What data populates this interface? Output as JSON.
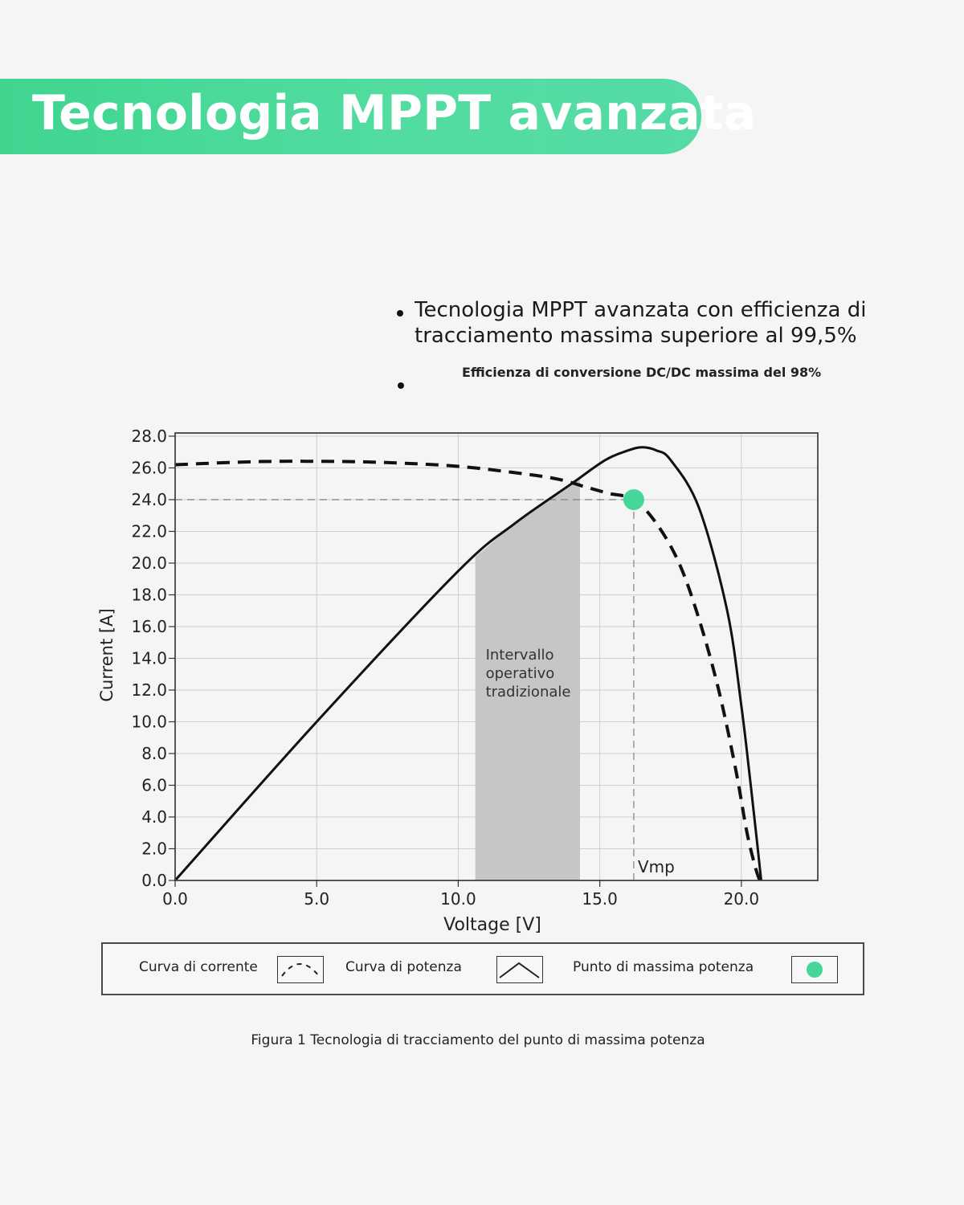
{
  "header": {
    "title": "Tecnologia MPPT avanzata"
  },
  "bullets": [
    "Tecnologia MPPT avanzata con efficienza di tracciamento massima superiore al 99,5%",
    "Efficienza di conversione DC/DC massima del 98%"
  ],
  "colors": {
    "accent": "#47d69a",
    "band": "#c6c6c6",
    "line": "#111111"
  },
  "legend": {
    "current_label": "Curva di corrente",
    "power_label": "Curva di potenza",
    "mpp_label": "Punto di massima potenza"
  },
  "caption": "Figura 1 Tecnologia di tracciamento del punto di massima potenza",
  "chart_data": {
    "type": "line",
    "xlabel": "Voltage [V]",
    "ylabel": "Current [A]",
    "xlim": [
      0,
      22.7
    ],
    "ylim": [
      0,
      28.2
    ],
    "grid": true,
    "xticks": [
      "0.0",
      "5.0",
      "10.0",
      "15.0",
      "20.0"
    ],
    "yticks": [
      "0.0",
      "2.0",
      "4.0",
      "6.0",
      "8.0",
      "10.0",
      "12.0",
      "14.0",
      "16.0",
      "18.0",
      "20.0",
      "22.0",
      "24.0",
      "26.0",
      "28.0"
    ],
    "legend_position": "bottom",
    "series": [
      {
        "name": "Curva di corrente",
        "style": "dashed",
        "x": [
          0,
          3,
          6,
          8,
          10,
          12,
          13.5,
          14.5,
          15.3,
          16.2,
          17,
          17.8,
          18.5,
          19.2,
          19.8,
          20.2,
          20.5,
          20.65
        ],
        "y": [
          26.2,
          26.4,
          26.4,
          26.3,
          26.1,
          25.7,
          25.3,
          24.8,
          24.4,
          24.0,
          22.5,
          20.0,
          16.5,
          12.0,
          7.0,
          3.0,
          0.8,
          0
        ]
      },
      {
        "name": "Curva di potenza",
        "style": "solid",
        "x": [
          0,
          5,
          10,
          12,
          14,
          15.2,
          16,
          16.5,
          17,
          17.5,
          18.5,
          19.5,
          20.0,
          20.3,
          20.55,
          20.7
        ],
        "y": [
          0,
          10,
          19.5,
          22.5,
          25.0,
          26.5,
          27.1,
          27.3,
          27.1,
          26.5,
          23.5,
          17.0,
          11.0,
          6.5,
          2.5,
          0
        ]
      }
    ],
    "mpp": {
      "name": "Punto di massima potenza",
      "x": 16.2,
      "y": 24.0,
      "label": "Vmp"
    },
    "band": {
      "x_from": 10.6,
      "x_to": 14.3,
      "label": [
        "Intervallo",
        "operativo",
        "tradizionale"
      ]
    }
  }
}
